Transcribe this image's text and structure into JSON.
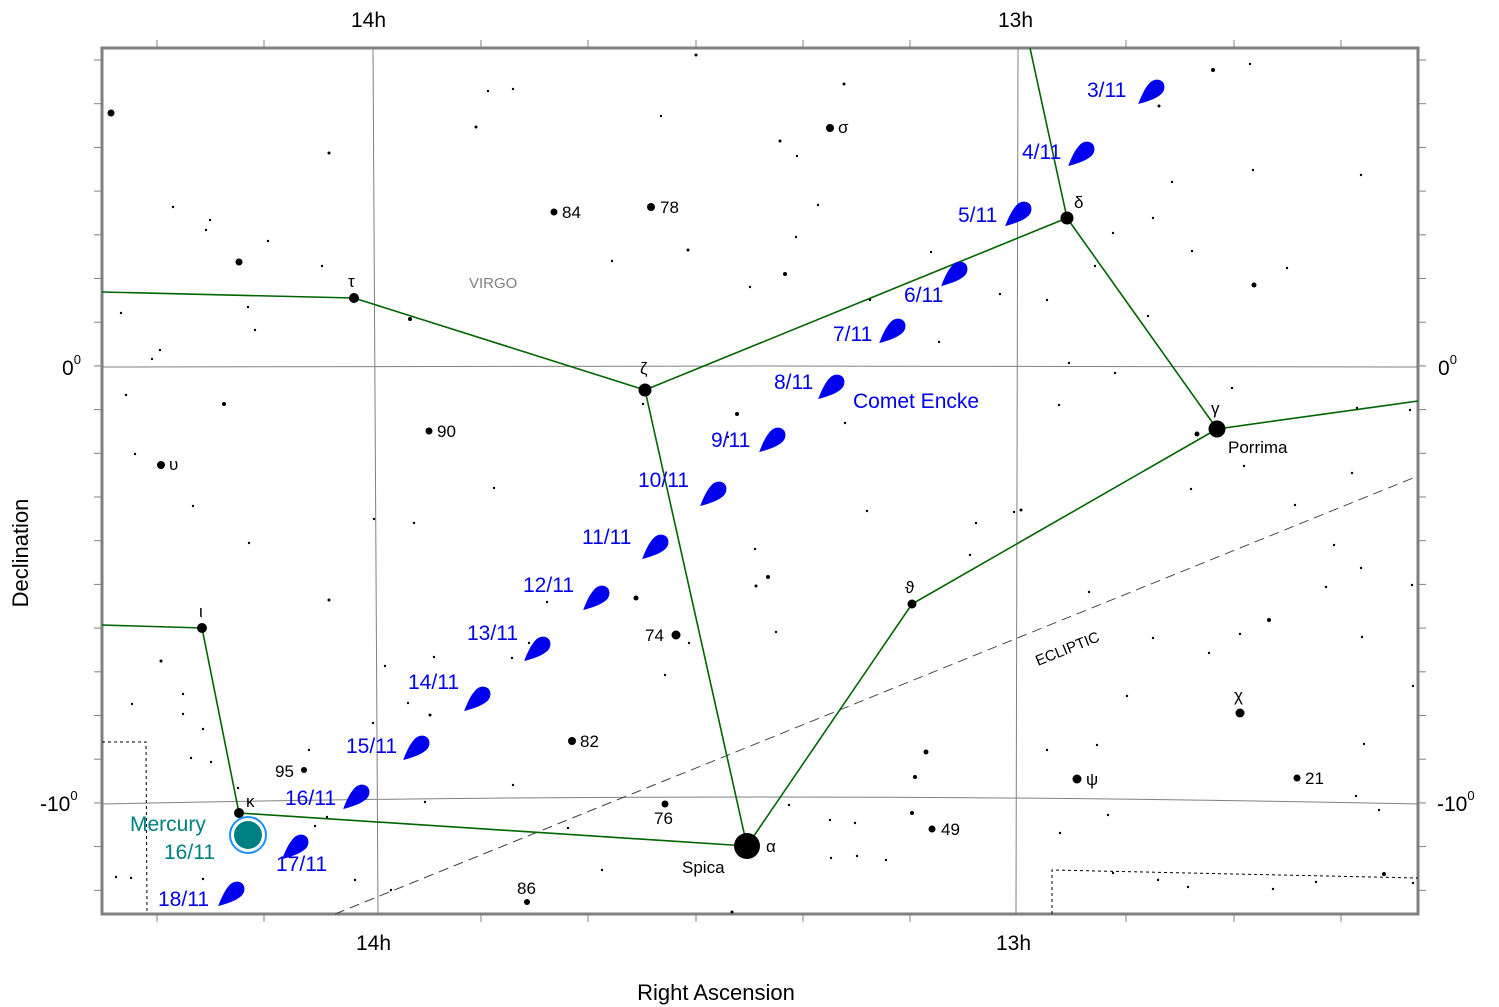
{
  "axes": {
    "x_label": "Right Ascension",
    "y_label": "Declination",
    "ra_ticks": [
      {
        "label": "14h",
        "ra": 14
      },
      {
        "label": "13h",
        "ra": 13
      }
    ],
    "dec_ticks": [
      {
        "label": "0",
        "sup": "0",
        "dec": 0
      },
      {
        "label": "-10",
        "sup": "0",
        "dec": -10
      }
    ]
  },
  "constellation": {
    "name": "Virgo",
    "display": "VIRGO"
  },
  "ecliptic_label": "ECLIPTIC",
  "comet": {
    "name": "Comet Encke",
    "dates": [
      "3/11",
      "4/11",
      "5/11",
      "6/11",
      "7/11",
      "8/11",
      "9/11",
      "10/11",
      "11/11",
      "12/11",
      "13/11",
      "14/11",
      "15/11",
      "16/11",
      "17/11",
      "18/11"
    ]
  },
  "mercury": {
    "name": "Mercury",
    "date": "16/11"
  },
  "named_stars": [
    {
      "id": "alpha",
      "greek": "α",
      "name": "Spica"
    },
    {
      "id": "gamma",
      "greek": "γ",
      "name": "Porrima"
    },
    {
      "id": "delta",
      "greek": "δ",
      "name": ""
    },
    {
      "id": "zeta",
      "greek": "ζ",
      "name": ""
    },
    {
      "id": "theta",
      "greek": "ϑ",
      "name": ""
    },
    {
      "id": "tau",
      "greek": "τ",
      "name": ""
    },
    {
      "id": "iota",
      "greek": "ι",
      "name": ""
    },
    {
      "id": "kappa",
      "greek": "κ",
      "name": ""
    },
    {
      "id": "sigma",
      "greek": "σ",
      "name": ""
    },
    {
      "id": "upsilon",
      "greek": "υ",
      "name": ""
    },
    {
      "id": "psi",
      "greek": "ψ",
      "name": ""
    },
    {
      "id": "chi",
      "greek": "χ",
      "name": ""
    }
  ],
  "numbered_stars": [
    "84",
    "78",
    "90",
    "74",
    "82",
    "95",
    "76",
    "86",
    "49",
    "21"
  ],
  "colors": {
    "constellation_lines": "#006400",
    "comet": "#0000ee",
    "mercury_fill": "#008080",
    "mercury_ring": "#1e90ff",
    "grid": "#808080",
    "frame": "#808080"
  }
}
